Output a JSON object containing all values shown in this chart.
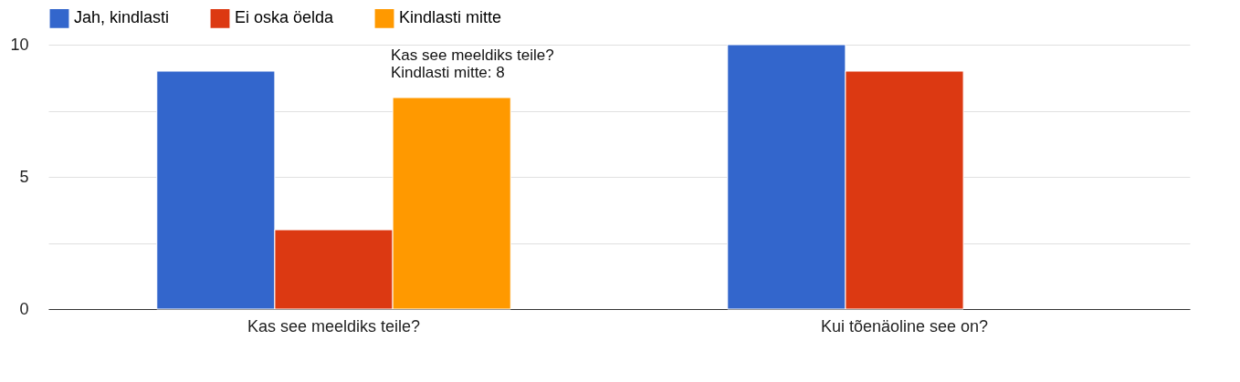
{
  "chart_data": {
    "type": "bar",
    "categories": [
      "Kas see meeldiks teile?",
      "Kui tõenäoline see on?"
    ],
    "series": [
      {
        "name": "Jah, kindlasti",
        "color": "#3366cc",
        "values": [
          9,
          10
        ]
      },
      {
        "name": "Ei oska öelda",
        "color": "#dc3912",
        "values": [
          3,
          9
        ]
      },
      {
        "name": "Kindlasti mitte",
        "color": "#ff9900",
        "values": [
          8,
          null
        ]
      }
    ],
    "ylim": [
      0,
      10
    ],
    "yticks": [
      0,
      {
        "value": 2.5,
        "label": null
      },
      5,
      {
        "value": 7.5,
        "label": null
      },
      10
    ],
    "grid": "y",
    "legend": "top left",
    "annotations": [
      "Kas see meeldiks teile?\nKindlasti mitte: 8"
    ]
  }
}
